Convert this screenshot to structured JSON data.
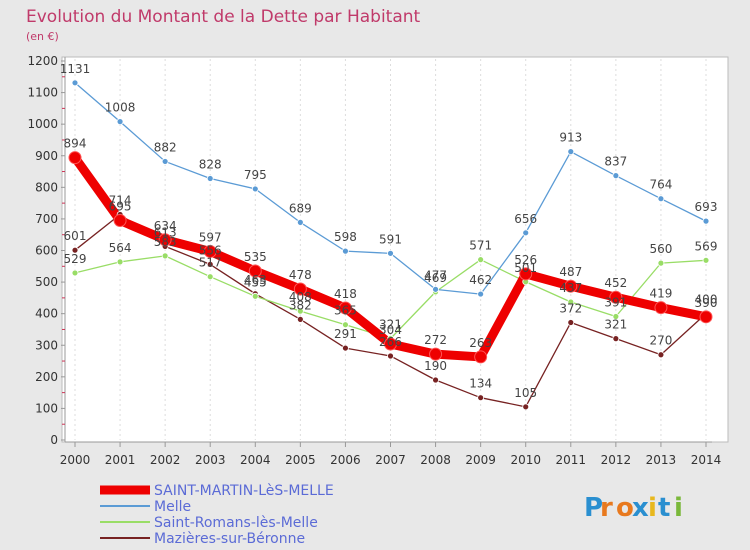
{
  "chart_data": {
    "type": "line",
    "title": "Evolution du Montant de la Dette par Habitant",
    "unit_label": "(en €)",
    "x": [
      2000,
      2001,
      2002,
      2003,
      2004,
      2005,
      2006,
      2007,
      2008,
      2009,
      2010,
      2011,
      2012,
      2013,
      2014
    ],
    "x_tick_labels": [
      "2000",
      "2001",
      "2002",
      "2003",
      "2004",
      "2005",
      "2006",
      "2007",
      "2008",
      "2009",
      "2010",
      "2011",
      "2012",
      "2013",
      "2014"
    ],
    "ylim": [
      0,
      1200
    ],
    "y_ticks": [
      0,
      100,
      200,
      300,
      400,
      500,
      600,
      700,
      800,
      900,
      1000,
      1100,
      1200
    ],
    "y_tick_labels": [
      "0",
      "100",
      "200",
      "300",
      "400",
      "500",
      "600",
      "700",
      "800",
      "900",
      "1000",
      "1100",
      "1200"
    ],
    "grid": "vertical",
    "legend_position": "bottom-left",
    "series": [
      {
        "name": "SAINT-MARTIN-LèS-MELLE",
        "color": "#ee0000",
        "values": [
          894,
          695,
          634,
          597,
          535,
          478,
          418,
          304,
          272,
          263,
          526,
          487,
          452,
          419,
          390
        ],
        "labels": [
          "894",
          "695",
          "634",
          "597",
          "535",
          "478",
          "418",
          "304",
          "272",
          "263",
          "526",
          "487",
          "452",
          "419",
          "390"
        ]
      },
      {
        "name": "Melle",
        "color": "#5b9bd5",
        "values": [
          1131,
          1008,
          882,
          828,
          795,
          689,
          598,
          591,
          477,
          462,
          656,
          913,
          837,
          764,
          693
        ],
        "labels": [
          "1131",
          "1008",
          "882",
          "828",
          "795",
          "689",
          "598",
          "591",
          "477",
          "462",
          "656",
          "913",
          "837",
          "764",
          "693"
        ]
      },
      {
        "name": "Saint-Romans-lès-Melle",
        "color": "#99dd66",
        "values": [
          529,
          564,
          583,
          517,
          455,
          408,
          365,
          321,
          469,
          571,
          501,
          437,
          391,
          560,
          569
        ],
        "labels": [
          "529",
          "564",
          "583",
          "517",
          "455",
          "408",
          "365",
          "321",
          "469",
          "571",
          "501",
          "437",
          "391",
          "560",
          "569"
        ]
      },
      {
        "name": "Mazières-sur-Béronne",
        "color": "#772222",
        "values": [
          601,
          714,
          613,
          556,
          463,
          382,
          291,
          266,
          190,
          134,
          105,
          372,
          321,
          270,
          400
        ],
        "labels": [
          "601",
          "714",
          "613",
          "556",
          "463",
          "382",
          "291",
          "266",
          "190",
          "134",
          "105",
          "372",
          "321",
          "270",
          "400"
        ]
      }
    ]
  },
  "logo": {
    "text": "Proxiti",
    "letters": [
      "P",
      "r",
      "o",
      "x",
      "i",
      "t",
      "i"
    ],
    "colors": [
      "#2a8fd0",
      "#e8791e",
      "#e8791e",
      "#2a8fd0",
      "#e8b81e",
      "#2a8fd0",
      "#7ab83a"
    ]
  }
}
